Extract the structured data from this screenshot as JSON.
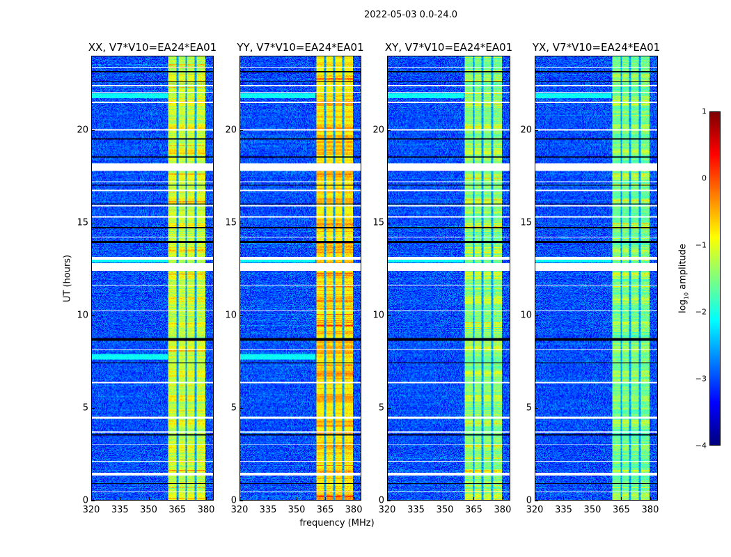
{
  "chart_data": {
    "type": "heatmap",
    "title": "2022-05-03 0.0-24.0",
    "xlabel": "frequency (MHz)",
    "ylabel": "UT (hours)",
    "xlim": [
      320,
      384
    ],
    "ylim": [
      0,
      24
    ],
    "xticks": [
      "320",
      "335",
      "350",
      "365",
      "380"
    ],
    "xtick_values": [
      320,
      335,
      350,
      365,
      380
    ],
    "yticks": [
      "0",
      "5",
      "10",
      "15",
      "20"
    ],
    "ytick_values": [
      0,
      5,
      10,
      15,
      20
    ],
    "panels": [
      {
        "title": "XX, V7*V10=EA24*EA01",
        "seed": 11,
        "band_peak": -0.6
      },
      {
        "title": "YY, V7*V10=EA24*EA01",
        "seed": 23,
        "band_peak": -0.2
      },
      {
        "title": "XY, V7*V10=EA24*EA01",
        "seed": 37,
        "band_peak": -0.9
      },
      {
        "title": "YX, V7*V10=EA24*EA01",
        "seed": 51,
        "band_peak": -1.0
      }
    ],
    "background_level": -3.0,
    "signal_band_mhz": [
      360.5,
      380
    ],
    "band_gaps_mhz": [
      365.2,
      369.8,
      374.8
    ],
    "flagged_ut_white": [
      [
        0.4,
        0.45
      ],
      [
        1.3,
        1.45
      ],
      [
        2.05,
        2.1
      ],
      [
        2.95,
        3.0
      ],
      [
        3.65,
        3.7
      ],
      [
        4.4,
        4.5
      ],
      [
        6.3,
        6.4
      ],
      [
        8.1,
        8.15
      ],
      [
        10.2,
        10.25
      ],
      [
        11.6,
        11.65
      ],
      [
        12.4,
        12.8
      ],
      [
        13.0,
        13.15
      ],
      [
        14.2,
        14.25
      ],
      [
        15.3,
        15.35
      ],
      [
        15.9,
        15.95
      ],
      [
        16.7,
        16.8
      ],
      [
        17.2,
        17.25
      ],
      [
        17.8,
        18.2
      ],
      [
        20.0,
        20.05
      ],
      [
        21.5,
        21.55
      ],
      [
        22.05,
        22.1
      ],
      [
        22.4,
        22.45
      ],
      [
        23.4,
        23.45
      ]
    ],
    "flagged_ut_black": [
      [
        0.85,
        0.92
      ],
      [
        3.5,
        3.55
      ],
      [
        7.4,
        7.45
      ],
      [
        8.6,
        8.75
      ],
      [
        13.9,
        14.0
      ],
      [
        14.7,
        14.75
      ],
      [
        16.0,
        16.05
      ],
      [
        17.0,
        17.05
      ],
      [
        18.5,
        18.6
      ],
      [
        19.5,
        19.55
      ],
      [
        22.6,
        22.65
      ],
      [
        23.15,
        23.2
      ]
    ],
    "colorbar": {
      "label_main": "log",
      "label_sub": "10",
      "label_tail": " amplitude",
      "range": [
        -4,
        1
      ],
      "ticks": [
        "1",
        "0",
        "−1",
        "−2",
        "−3",
        "−4"
      ],
      "tick_values": [
        1,
        0,
        -1,
        -2,
        -3,
        -4
      ],
      "colormap": "jet"
    }
  }
}
